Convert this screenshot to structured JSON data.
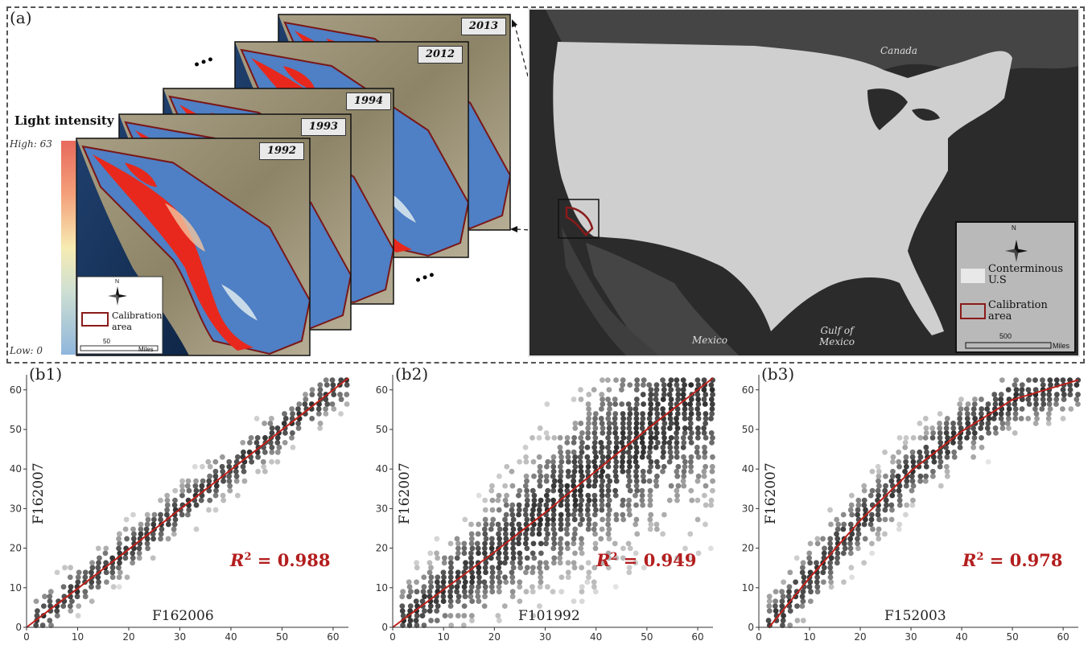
{
  "panel_a": {
    "tag": "(a)",
    "legend_title": "Light intensity",
    "high_label": "High: 63",
    "low_label": "Low: 0",
    "years": [
      "1992",
      "1993",
      "1994",
      "2012",
      "2013"
    ],
    "ellipsis": "•••",
    "inset_legend": {
      "label": "Calibration area",
      "scale": "50",
      "unit": "Miles",
      "north": "N"
    },
    "map": {
      "labels": {
        "canada": "Canada",
        "mexico": "Mexico",
        "gulf": "Gulf of Mexico"
      },
      "legend": {
        "north": "N",
        "item1": "Conterminous U.S",
        "item2": "Calibration area",
        "scale": "500",
        "unit": "Miles"
      }
    },
    "colors": {
      "land_us": "#cfcfcf",
      "dark": "#2c2c2c",
      "calibration": "#8b1a1a",
      "hot": "#e8281d",
      "cool": "#4f7fc4"
    }
  },
  "chart_data": [
    {
      "type": "scatter",
      "tag": "(b1)",
      "xlabel": "F162006",
      "ylabel": "F162007",
      "r2_prefix": "R",
      "r2_sup": "2",
      "r2_value": " = 0.988",
      "xlim": [
        0,
        63
      ],
      "ylim": [
        0,
        63
      ],
      "xticks": [
        0,
        10,
        20,
        30,
        40,
        50,
        60
      ],
      "yticks": [
        0,
        10,
        20,
        30,
        40,
        50,
        60
      ],
      "fit": {
        "x": [
          0,
          10,
          20,
          30,
          40,
          50,
          63
        ],
        "y": [
          0,
          9.8,
          19.7,
          29.8,
          39.8,
          49.9,
          63
        ]
      },
      "spread": 3.5
    },
    {
      "type": "scatter",
      "tag": "(b2)",
      "xlabel": "F101992",
      "ylabel": "F162007",
      "r2_prefix": "R",
      "r2_sup": "2",
      "r2_value": " = 0.949",
      "xlim": [
        0,
        63
      ],
      "ylim": [
        0,
        63
      ],
      "xticks": [
        0,
        10,
        20,
        30,
        40,
        50,
        60
      ],
      "yticks": [
        0,
        10,
        20,
        30,
        40,
        50,
        60
      ],
      "fit": {
        "x": [
          0,
          10,
          20,
          30,
          40,
          50,
          63
        ],
        "y": [
          0,
          9.5,
          19,
          29,
          39.5,
          50,
          63
        ]
      },
      "spread": 9
    },
    {
      "type": "scatter",
      "tag": "(b3)",
      "xlabel": "F152003",
      "ylabel": "F162007",
      "r2_prefix": "R",
      "r2_sup": "2",
      "r2_value": " = 0.978",
      "xlim": [
        0,
        63
      ],
      "ylim": [
        0,
        63
      ],
      "xticks": [
        0,
        10,
        20,
        30,
        40,
        50,
        60
      ],
      "yticks": [
        0,
        10,
        20,
        30,
        40,
        50,
        60
      ],
      "fit": {
        "x": [
          2,
          10,
          20,
          30,
          40,
          50,
          63
        ],
        "y": [
          0,
          12.5,
          27,
          39.5,
          49.5,
          57.5,
          62.5
        ]
      },
      "spread": 5
    }
  ]
}
